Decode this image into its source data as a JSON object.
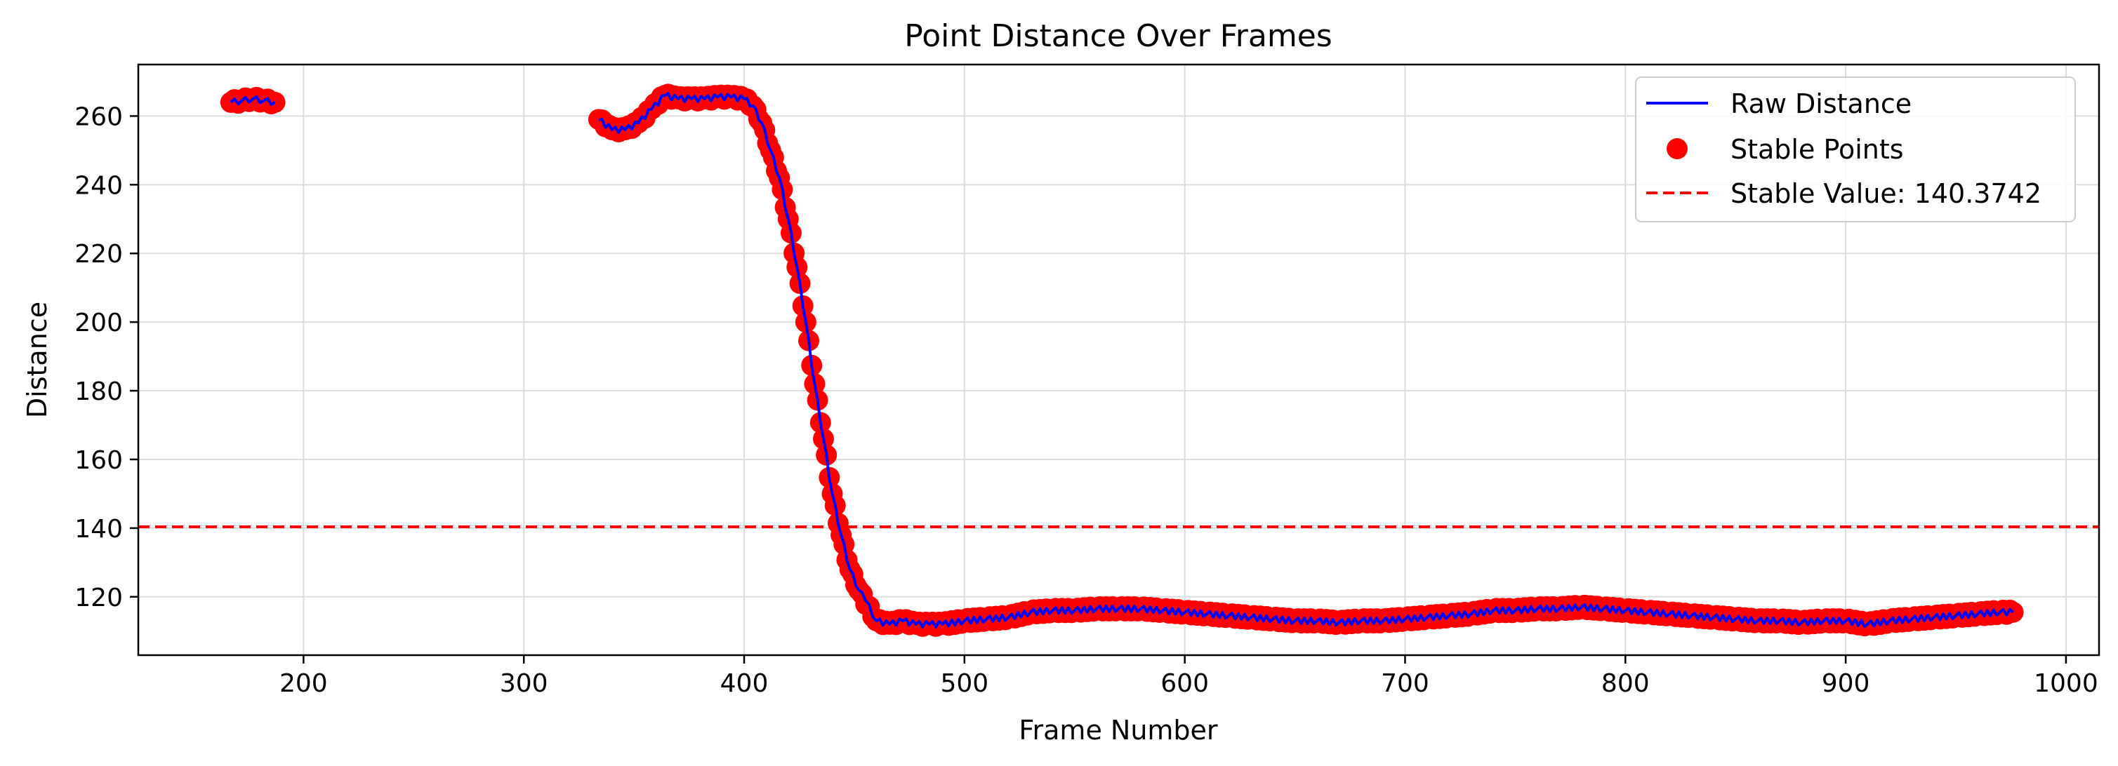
{
  "chart_data": {
    "type": "line",
    "title": "Point Distance Over Frames",
    "xlabel": "Frame Number",
    "ylabel": "Distance",
    "xlim": [
      125,
      1015
    ],
    "ylim": [
      103,
      275
    ],
    "xticks": [
      200,
      300,
      400,
      500,
      600,
      700,
      800,
      900,
      1000
    ],
    "yticks": [
      120,
      140,
      160,
      180,
      200,
      220,
      240,
      260
    ],
    "grid": true,
    "legend_position": "top-right",
    "reference_line": {
      "value": 140.3742,
      "color": "#ff0000",
      "style": "dashed"
    },
    "series": [
      {
        "name": "Raw Distance",
        "kind": "line",
        "color": "#0000ff",
        "segments": [
          {
            "x": [
              167,
              172,
              177,
              182,
              187
            ],
            "y": [
              264,
              264.5,
              265,
              264.5,
              264
            ]
          },
          {
            "x": [
              334,
              340,
              346,
              352,
              358,
              364,
              370,
              376,
              382,
              388,
              394,
              400,
              404,
              408,
              412,
              416,
              420,
              424,
              428,
              432,
              436,
              440,
              444,
              448,
              452,
              455,
              460,
              466,
              472,
              478,
              484,
              490,
              500,
              510,
              520,
              530,
              540,
              550,
              560,
              570,
              580,
              590,
              600,
              610,
              620,
              630,
              640,
              650,
              660,
              670,
              680,
              690,
              700,
              710,
              720,
              730,
              740,
              750,
              760,
              770,
              780,
              790,
              800,
              810,
              820,
              830,
              840,
              850,
              860,
              870,
              880,
              890,
              900,
              910,
              920,
              930,
              940,
              950,
              960,
              970,
              976
            ],
            "y": [
              259,
              256,
              256,
              258,
              262,
              266,
              265,
              265,
              265,
              265.5,
              265.5,
              265,
              263,
              258,
              250,
              242,
              230,
              216,
              200,
              182,
              166,
              150,
              138,
              128,
              122,
              119,
              113,
              112,
              113,
              112,
              112,
              112,
              113,
              113.5,
              114,
              115.5,
              116,
              116,
              116.5,
              116.5,
              116.5,
              116,
              115.5,
              115,
              114.5,
              114,
              113.5,
              113,
              113,
              112.5,
              113,
              113,
              113.5,
              114,
              114.5,
              115,
              116,
              116,
              116.5,
              116.5,
              117,
              116.5,
              116,
              115.5,
              115,
              114.5,
              114,
              113.5,
              113,
              113,
              112.5,
              113,
              113,
              112,
              113,
              113.5,
              114,
              114.5,
              115,
              115.5,
              115.5
            ]
          }
        ]
      },
      {
        "name": "Stable Points",
        "kind": "scatter",
        "color": "#ff0000",
        "segments": [
          {
            "x": [
              167,
              172,
              177,
              182,
              187
            ],
            "y": [
              264,
              264.5,
              265,
              264.5,
              264
            ]
          },
          {
            "x": [
              334,
              340,
              346,
              352,
              358,
              364,
              370,
              376,
              382,
              388,
              394,
              400,
              404,
              408,
              412,
              416,
              420,
              424,
              428,
              432,
              436,
              440,
              444,
              448,
              452,
              460,
              466,
              472,
              478,
              484,
              490,
              500,
              510,
              520,
              530,
              540,
              550,
              560,
              570,
              580,
              590,
              600,
              610,
              620,
              630,
              640,
              650,
              660,
              670,
              680,
              690,
              700,
              710,
              720,
              730,
              740,
              750,
              760,
              770,
              780,
              790,
              800,
              810,
              820,
              830,
              840,
              850,
              860,
              870,
              880,
              890,
              900,
              910,
              920,
              930,
              940,
              950,
              960,
              970,
              976
            ],
            "y": [
              259,
              256,
              256,
              258,
              262,
              266,
              265,
              265,
              265,
              265.5,
              265.5,
              265,
              263,
              258,
              250,
              242,
              230,
              216,
              200,
              182,
              166,
              150,
              138,
              128,
              122,
              113,
              112,
              113,
              112,
              112,
              112,
              113,
              113.5,
              114,
              115.5,
              116,
              116,
              116.5,
              116.5,
              116.5,
              116,
              115.5,
              115,
              114.5,
              114,
              113.5,
              113,
              113,
              112.5,
              113,
              113,
              113.5,
              114,
              114.5,
              115,
              116,
              116,
              116.5,
              116.5,
              117,
              116.5,
              116,
              115.5,
              115,
              114.5,
              114,
              113.5,
              113,
              113,
              112.5,
              113,
              113,
              112,
              113,
              113.5,
              114,
              114.5,
              115,
              115.5,
              115.5
            ]
          }
        ]
      }
    ],
    "legend": [
      {
        "label": "Raw Distance",
        "symbol": "line",
        "color": "#0000ff"
      },
      {
        "label": "Stable Points",
        "symbol": "dot",
        "color": "#ff0000"
      },
      {
        "label": "Stable Value: 140.3742",
        "symbol": "dashed",
        "color": "#ff0000"
      }
    ]
  }
}
